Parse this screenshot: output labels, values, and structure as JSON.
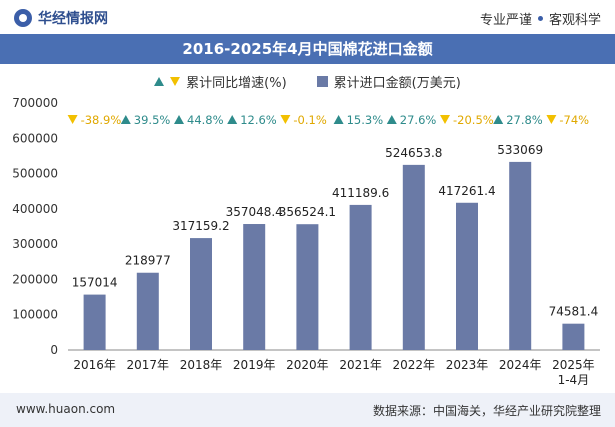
{
  "header": {
    "brand": "华经情报网",
    "tag_left": "专业严谨",
    "tag_right": "客观科学"
  },
  "chart_title": "2016-2025年4月中国棉花进口金额",
  "legend": {
    "growth_label": "累计同比增速(%)",
    "amount_label": "累计进口金额(万美元)"
  },
  "colors": {
    "bar": "#6a7aa6",
    "up": "#2e8b8b",
    "down": "#f2c000",
    "title_bg": "#4a6fb3"
  },
  "chart_data": {
    "type": "bar",
    "categories": [
      "2016年",
      "2017年",
      "2018年",
      "2019年",
      "2020年",
      "2021年",
      "2022年",
      "2023年",
      "2024年",
      "2025年\n1-4月"
    ],
    "series": [
      {
        "name": "累计进口金额(万美元)",
        "values": [
          157014,
          218977,
          317159.2,
          357048.4,
          356524.1,
          411189.6,
          524653.8,
          417261.4,
          533069,
          74581.4
        ],
        "labels": [
          "157014",
          "218977",
          "317159.2",
          "357048.4",
          "356524.1",
          "411189.6",
          "524653.8",
          "417261.4",
          "533069",
          "74581.4"
        ]
      },
      {
        "name": "累计同比增速(%)",
        "values": [
          -38.9,
          39.5,
          44.8,
          12.6,
          -0.1,
          15.3,
          27.6,
          -20.5,
          27.8,
          -74
        ],
        "labels": [
          "-38.9%",
          "39.5%",
          "44.8%",
          "12.6%",
          "-0.1%",
          "15.3%",
          "27.6%",
          "-20.5%",
          "27.8%",
          "-74%"
        ]
      }
    ],
    "yticks": [
      "0",
      "100000",
      "200000",
      "300000",
      "400000",
      "500000",
      "600000",
      "700000"
    ],
    "ylim": [
      0,
      700000
    ]
  },
  "footer": {
    "website": "www.huaon.com",
    "source": "数据来源：中国海关，华经产业研究院整理"
  }
}
